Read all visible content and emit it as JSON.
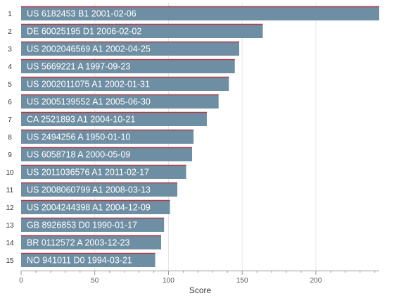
{
  "chart_data": {
    "type": "bar",
    "orientation": "horizontal",
    "ranks": [
      "1",
      "2",
      "3",
      "4",
      "5",
      "6",
      "7",
      "8",
      "9",
      "10",
      "11",
      "12",
      "13",
      "14",
      "15"
    ],
    "categories": [
      "US 6182453 B1 2001-02-06",
      "DE 60025195 D1 2006-02-02",
      "US 2002046569 A1 2002-04-25",
      "US 5669221 A 1997-09-23",
      "US 2002011075 A1 2002-01-31",
      "US 2005139552 A1 2005-06-30",
      "CA 2521893 A1 2004-10-21",
      "US 2494256 A 1950-01-10",
      "US 6058718 A 2000-05-09",
      "US 2011036576 A1 2011-02-17",
      "US 2008060799 A1 2008-03-13",
      "US 2004244398 A1 2004-12-09",
      "GB 8926853 D0 1990-01-17",
      "BR 0112572 A 2003-12-23",
      "NO 941011 D0 1994-03-21"
    ],
    "values": [
      243,
      164,
      148,
      145,
      141,
      134,
      126,
      117,
      116,
      112,
      106,
      101,
      97,
      95,
      91
    ],
    "xlabel": "Score",
    "xlim": [
      0,
      243
    ],
    "xticks": [
      0,
      50,
      100,
      150,
      200
    ],
    "grid": true,
    "legend": "none",
    "colors": {
      "bar": "#6e8fa3",
      "bar_top": "#b03a48"
    }
  }
}
